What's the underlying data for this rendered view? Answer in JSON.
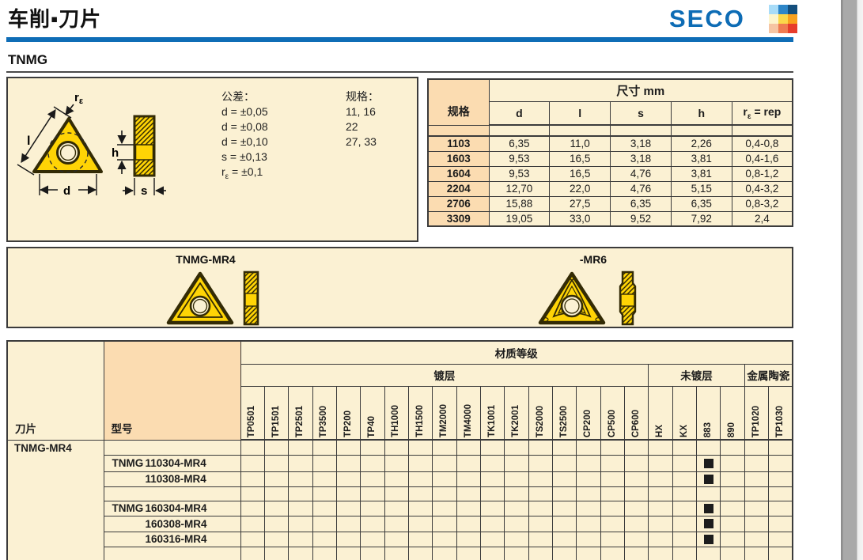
{
  "page": {
    "title": "车削▪刀片",
    "section_title": "TNMG"
  },
  "brand": {
    "name": "SECO",
    "blue": "#0d6cb5",
    "mosaic_colors": [
      "#a8dcf8",
      "#2e86c8",
      "#144f7d",
      "#fdf5cd",
      "#fbd84a",
      "#f9a11d",
      "#f6c5a3",
      "#ef7b51",
      "#e73c2a"
    ]
  },
  "diagram": {
    "tolerance_heading": "公差：",
    "tolerance_lines": [
      "d = ±0,05",
      "d = ±0,08",
      "d = ±0,10",
      "s = ±0,13"
    ],
    "tolerance_re": {
      "base": "r",
      "sub": "ε",
      "rest": " = ±0,1"
    },
    "spec_heading": "规格：",
    "spec_lines": [
      "11, 16",
      "22",
      "27, 33"
    ],
    "labels": {
      "l": "l",
      "d": "d",
      "h": "h",
      "s": "s",
      "re_base": "r",
      "re_sub": "ε"
    }
  },
  "dimensions_table": {
    "size_header": "尺寸 mm",
    "spec_col_header": "规格",
    "value_col_headers": [
      "d",
      "l",
      "s",
      "h"
    ],
    "re_col_header": {
      "base": "r",
      "sub": "ε",
      "rest": " = rep"
    },
    "rows": [
      {
        "spec": "1103",
        "values": [
          "6,35",
          "11,0",
          "3,18",
          "2,26",
          "0,4-0,8"
        ]
      },
      {
        "spec": "1603",
        "values": [
          "9,53",
          "16,5",
          "3,18",
          "3,81",
          "0,4-1,6"
        ]
      },
      {
        "spec": "1604",
        "values": [
          "9,53",
          "16,5",
          "4,76",
          "3,81",
          "0,8-1,2"
        ]
      },
      {
        "spec": "2204",
        "values": [
          "12,70",
          "22,0",
          "4,76",
          "5,15",
          "0,4-3,2"
        ]
      },
      {
        "spec": "2706",
        "values": [
          "15,88",
          "27,5",
          "6,35",
          "6,35",
          "0,8-3,2"
        ]
      },
      {
        "spec": "3309",
        "values": [
          "19,05",
          "33,0",
          "9,52",
          "7,92",
          "2,4"
        ]
      }
    ]
  },
  "chipbreaker_panel": {
    "left_label": "TNMG-MR4",
    "right_label": "-MR6"
  },
  "grades_table": {
    "insert_col_header": "刀片",
    "model_col_header": "型号",
    "grades_header": "材质等级",
    "groups": [
      {
        "label": "镀层",
        "span": 17
      },
      {
        "label": "未镀层",
        "span": 4
      },
      {
        "label": "金属陶瓷",
        "span": 2
      }
    ],
    "grade_columns": [
      "TP0501",
      "TP1501",
      "TP2501",
      "TP3500",
      "TP200",
      "TP40",
      "TH1000",
      "TH1500",
      "TM2000",
      "TM4000",
      "TK1001",
      "TK2001",
      "TS2000",
      "TS2500",
      "CP200",
      "CP500",
      "CP600",
      "HX",
      "KX",
      "883",
      "890",
      "TP1020",
      "TP1030"
    ],
    "insert_group_label": "TNMG-MR4",
    "rows": [
      {
        "prefix": "",
        "code": "",
        "marks": []
      },
      {
        "prefix": "TNMG",
        "code": "110304-MR4",
        "marks": [
          "883"
        ]
      },
      {
        "prefix": "",
        "code": "110308-MR4",
        "marks": [
          "883"
        ]
      },
      {
        "prefix": "",
        "code": "",
        "marks": []
      },
      {
        "prefix": "TNMG",
        "code": "160304-MR4",
        "marks": [
          "883"
        ]
      },
      {
        "prefix": "",
        "code": "160308-MR4",
        "marks": [
          "883"
        ]
      },
      {
        "prefix": "",
        "code": "160316-MR4",
        "marks": [
          "883"
        ]
      },
      {
        "prefix": "",
        "code": "",
        "marks": []
      }
    ]
  },
  "colors": {
    "cream": "#fbf1d3",
    "tan": "#fbdcb1",
    "border": "#3b3b3b",
    "insert_yellow": "#ffd405",
    "mark_square": "#1d1d1d",
    "page_edge_gray": "#a9a9a9"
  }
}
